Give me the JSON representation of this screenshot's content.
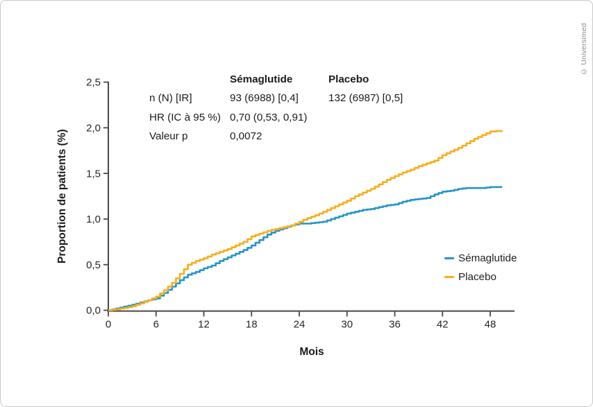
{
  "watermark": "© Universimed",
  "colors": {
    "semaglutide": "#2494C9",
    "placebo": "#F8AD1C",
    "axis": "#474747",
    "text": "#262626"
  },
  "chart_data": {
    "type": "line",
    "subtype": "kaplan-meier-step",
    "title": "",
    "xlabel": "Mois",
    "ylabel": "Proportion de patients (%)",
    "xlim": [
      0,
      51
    ],
    "ylim": [
      0,
      2.5
    ],
    "grid": false,
    "legend_position": "right-middle",
    "x_ticks": [
      {
        "v": 0,
        "label": "0"
      },
      {
        "v": 6,
        "label": "6"
      },
      {
        "v": 12,
        "label": "12"
      },
      {
        "v": 18,
        "label": "18"
      },
      {
        "v": 24,
        "label": "24"
      },
      {
        "v": 30,
        "label": "30"
      },
      {
        "v": 36,
        "label": "36"
      },
      {
        "v": 42,
        "label": "42"
      },
      {
        "v": 48,
        "label": "48"
      }
    ],
    "y_ticks": [
      {
        "v": 0.0,
        "label": "0,0"
      },
      {
        "v": 0.5,
        "label": "0,5"
      },
      {
        "v": 1.0,
        "label": "1,0"
      },
      {
        "v": 1.5,
        "label": "1,5"
      },
      {
        "v": 2.0,
        "label": "2,0"
      },
      {
        "v": 2.5,
        "label": "2,5"
      }
    ],
    "series": [
      {
        "name": "Sémaglutide",
        "color": "#2494C9",
        "points": [
          [
            0,
            0
          ],
          [
            0.5,
            0.01
          ],
          [
            1,
            0.02
          ],
          [
            1.5,
            0.03
          ],
          [
            2,
            0.04
          ],
          [
            2.5,
            0.05
          ],
          [
            3,
            0.06
          ],
          [
            4,
            0.085
          ],
          [
            5,
            0.11
          ],
          [
            6,
            0.13
          ],
          [
            7,
            0.19
          ],
          [
            8,
            0.26
          ],
          [
            9,
            0.33
          ],
          [
            10,
            0.39
          ],
          [
            11,
            0.42
          ],
          [
            12,
            0.46
          ],
          [
            13,
            0.49
          ],
          [
            14,
            0.54
          ],
          [
            15,
            0.58
          ],
          [
            16,
            0.62
          ],
          [
            17,
            0.66
          ],
          [
            18,
            0.71
          ],
          [
            19,
            0.77
          ],
          [
            20,
            0.83
          ],
          [
            21,
            0.87
          ],
          [
            22,
            0.9
          ],
          [
            23,
            0.93
          ],
          [
            24,
            0.95
          ],
          [
            25,
            0.95
          ],
          [
            26,
            0.96
          ],
          [
            27,
            0.97
          ],
          [
            28,
            1.0
          ],
          [
            29,
            1.03
          ],
          [
            30,
            1.06
          ],
          [
            31,
            1.08
          ],
          [
            32,
            1.1
          ],
          [
            33,
            1.11
          ],
          [
            34,
            1.13
          ],
          [
            35,
            1.15
          ],
          [
            36,
            1.16
          ],
          [
            37,
            1.19
          ],
          [
            38,
            1.21
          ],
          [
            39,
            1.22
          ],
          [
            40,
            1.23
          ],
          [
            41,
            1.27
          ],
          [
            42,
            1.3
          ],
          [
            43,
            1.31
          ],
          [
            44,
            1.33
          ],
          [
            45,
            1.34
          ],
          [
            46,
            1.34
          ],
          [
            47,
            1.34
          ],
          [
            48,
            1.35
          ],
          [
            49.5,
            1.35
          ]
        ]
      },
      {
        "name": "Placebo",
        "color": "#F8AD1C",
        "points": [
          [
            0,
            0
          ],
          [
            0.5,
            0.005
          ],
          [
            1,
            0.01
          ],
          [
            1.5,
            0.02
          ],
          [
            2,
            0.025
          ],
          [
            2.5,
            0.035
          ],
          [
            3,
            0.045
          ],
          [
            4,
            0.075
          ],
          [
            5,
            0.11
          ],
          [
            6,
            0.15
          ],
          [
            7,
            0.22
          ],
          [
            8,
            0.3
          ],
          [
            9,
            0.4
          ],
          [
            10,
            0.5
          ],
          [
            11,
            0.54
          ],
          [
            12,
            0.57
          ],
          [
            13,
            0.61
          ],
          [
            14,
            0.64
          ],
          [
            15,
            0.67
          ],
          [
            16,
            0.71
          ],
          [
            17,
            0.75
          ],
          [
            18,
            0.81
          ],
          [
            19,
            0.84
          ],
          [
            20,
            0.87
          ],
          [
            21,
            0.89
          ],
          [
            22,
            0.91
          ],
          [
            23,
            0.93
          ],
          [
            24,
            0.97
          ],
          [
            25,
            1.01
          ],
          [
            26,
            1.04
          ],
          [
            27,
            1.08
          ],
          [
            28,
            1.12
          ],
          [
            29,
            1.16
          ],
          [
            30,
            1.2
          ],
          [
            31,
            1.25
          ],
          [
            32,
            1.29
          ],
          [
            33,
            1.33
          ],
          [
            34,
            1.38
          ],
          [
            35,
            1.43
          ],
          [
            36,
            1.47
          ],
          [
            37,
            1.51
          ],
          [
            38,
            1.54
          ],
          [
            39,
            1.58
          ],
          [
            40,
            1.61
          ],
          [
            41,
            1.64
          ],
          [
            42,
            1.7
          ],
          [
            43,
            1.74
          ],
          [
            44,
            1.78
          ],
          [
            45,
            1.83
          ],
          [
            46,
            1.88
          ],
          [
            47,
            1.92
          ],
          [
            48,
            1.96
          ],
          [
            49.5,
            1.97
          ]
        ]
      }
    ],
    "stats_table": {
      "header": [
        "",
        "Sémaglutide",
        "Placebo"
      ],
      "rows": [
        [
          "n (N) [IR]",
          "93 (6988) [0,4]",
          "132 (6987) [0,5]"
        ],
        [
          "HR (IC à 95 %)",
          "0,70 (0,53, 0,91)",
          ""
        ],
        [
          "Valeur p",
          "0,0072",
          ""
        ]
      ]
    }
  }
}
